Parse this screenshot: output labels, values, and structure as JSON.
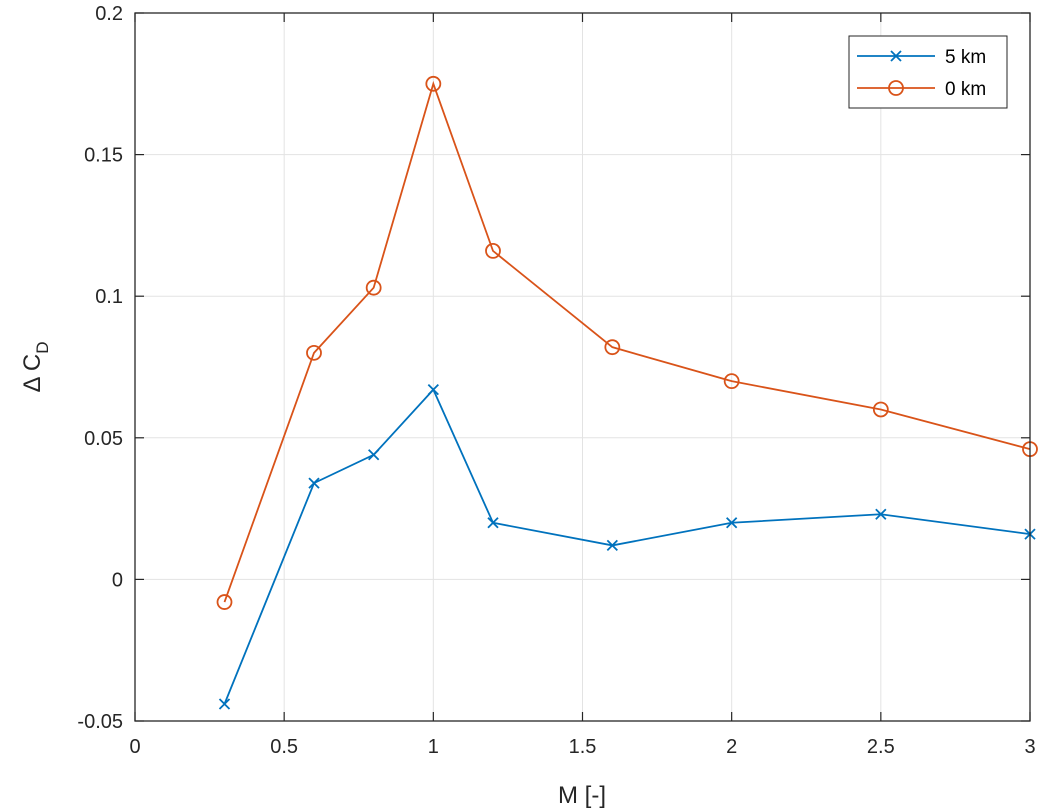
{
  "chart_data": {
    "type": "line",
    "title": "",
    "xlabel": "M [-]",
    "ylabel_main": "Δ C",
    "ylabel_sub": "D",
    "xlim": [
      0,
      3
    ],
    "ylim": [
      -0.05,
      0.2
    ],
    "xticks": [
      0,
      0.5,
      1,
      1.5,
      2,
      2.5,
      3
    ],
    "xtick_labels": [
      "0",
      "0.5",
      "1",
      "1.5",
      "2",
      "2.5",
      "3"
    ],
    "yticks": [
      -0.05,
      0,
      0.05,
      0.1,
      0.15,
      0.2
    ],
    "ytick_labels": [
      "-0.05",
      "0",
      "0.05",
      "0.1",
      "0.15",
      "0.2"
    ],
    "grid": true,
    "legend_position": "top-right",
    "series": [
      {
        "name": "5 km",
        "color": "#0072BD",
        "marker": "x",
        "x": [
          0.3,
          0.6,
          0.8,
          1.0,
          1.2,
          1.6,
          2.0,
          2.5,
          3.0
        ],
        "y": [
          -0.044,
          0.034,
          0.044,
          0.067,
          0.02,
          0.012,
          0.02,
          0.023,
          0.016
        ]
      },
      {
        "name": "0 km",
        "color": "#D95319",
        "marker": "o",
        "x": [
          0.3,
          0.6,
          0.8,
          1.0,
          1.2,
          1.6,
          2.0,
          2.5,
          3.0
        ],
        "y": [
          -0.008,
          0.08,
          0.103,
          0.175,
          0.116,
          0.082,
          0.07,
          0.06,
          0.046
        ]
      }
    ]
  }
}
